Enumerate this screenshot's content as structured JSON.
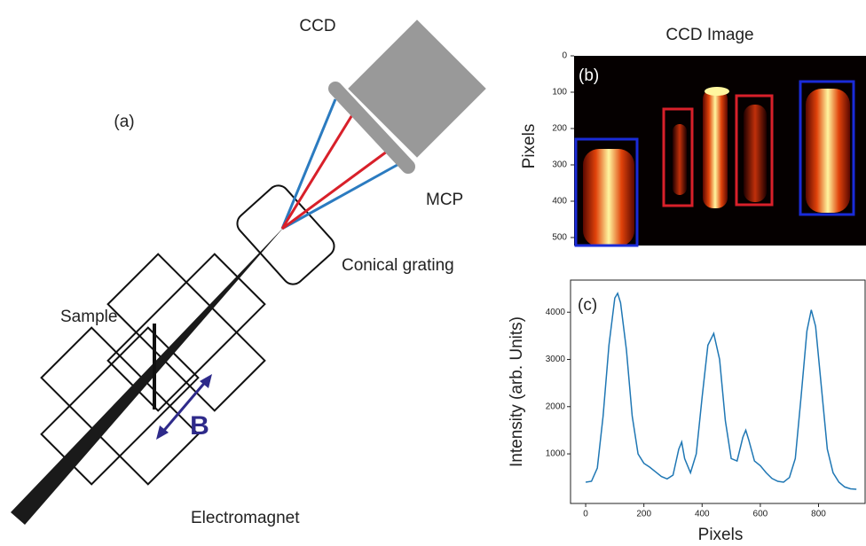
{
  "diagram": {
    "panel_label": "(a)",
    "ccd": "CCD",
    "mcp": "MCP",
    "grating": "Conical grating",
    "sample": "Sample",
    "field": "B",
    "magnet": "Electromagnet"
  },
  "ccd_image": {
    "panel_label": "(b)",
    "title": "CCD Image",
    "ylabel": "Pixels",
    "ylim": [
      0,
      522
    ],
    "yticks": [
      0,
      100,
      200,
      300,
      400,
      500
    ]
  },
  "chart_data": {
    "type": "line",
    "panel_label": "(c)",
    "xlabel": "Pixels",
    "ylabel": "Intensity (arb. Units)",
    "color": "#1f77b4",
    "x": [
      0,
      20,
      40,
      60,
      80,
      100,
      110,
      120,
      140,
      160,
      180,
      200,
      220,
      240,
      260,
      280,
      300,
      320,
      330,
      340,
      360,
      380,
      400,
      420,
      440,
      460,
      480,
      500,
      520,
      540,
      550,
      560,
      580,
      600,
      620,
      640,
      660,
      680,
      700,
      720,
      740,
      760,
      775,
      790,
      810,
      830,
      850,
      870,
      890,
      910,
      930
    ],
    "values": [
      400,
      420,
      700,
      1800,
      3300,
      4300,
      4400,
      4200,
      3200,
      1800,
      1000,
      800,
      720,
      620,
      520,
      470,
      550,
      1100,
      1250,
      900,
      600,
      1000,
      2200,
      3300,
      3550,
      3000,
      1700,
      900,
      850,
      1350,
      1500,
      1300,
      850,
      750,
      600,
      480,
      420,
      400,
      500,
      900,
      2200,
      3600,
      4050,
      3700,
      2400,
      1100,
      600,
      400,
      300,
      260,
      250
    ],
    "xlim": [
      -52,
      960
    ],
    "ylim": [
      -50,
      4680
    ],
    "xticks": [
      0,
      200,
      400,
      600,
      800
    ],
    "yticks": [
      1000,
      2000,
      3000,
      4000
    ]
  }
}
